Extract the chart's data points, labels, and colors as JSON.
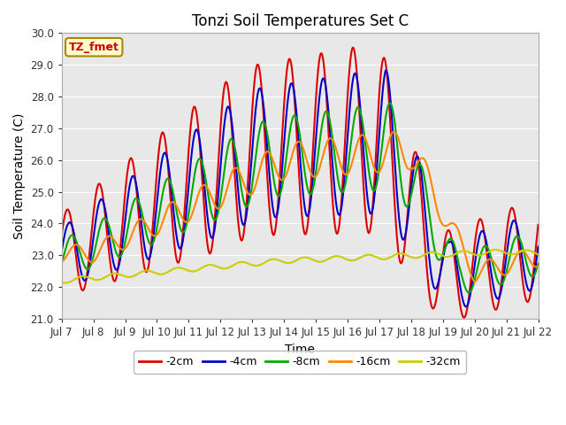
{
  "title": "Tonzi Soil Temperatures Set C",
  "xlabel": "Time",
  "ylabel": "Soil Temperature (C)",
  "ylim": [
    21.0,
    30.0
  ],
  "yticks": [
    21.0,
    22.0,
    23.0,
    24.0,
    25.0,
    26.0,
    27.0,
    28.0,
    29.0,
    30.0
  ],
  "xtick_labels": [
    "Jul 7",
    "Jul 8",
    "Jul 9",
    "Jul 10",
    "Jul 11",
    "Jul 12",
    "Jul 13",
    "Jul 14",
    "Jul 15",
    "Jul 16",
    "Jul 17",
    "Jul 18",
    "Jul 19",
    "Jul 20",
    "Jul 21",
    "Jul 22"
  ],
  "legend_labels": [
    "-2cm",
    "-4cm",
    "-8cm",
    "-16cm",
    "-32cm"
  ],
  "legend_colors": [
    "#dd0000",
    "#0000cc",
    "#00aa00",
    "#ff8800",
    "#cccc00"
  ],
  "annotation_text": "TZ_fmet",
  "annotation_bg": "#ffffcc",
  "annotation_border": "#aa8800",
  "plot_bg": "#e8e8e8",
  "fig_bg": "#ffffff",
  "grid_color": "#ffffff",
  "line_width": 1.5
}
